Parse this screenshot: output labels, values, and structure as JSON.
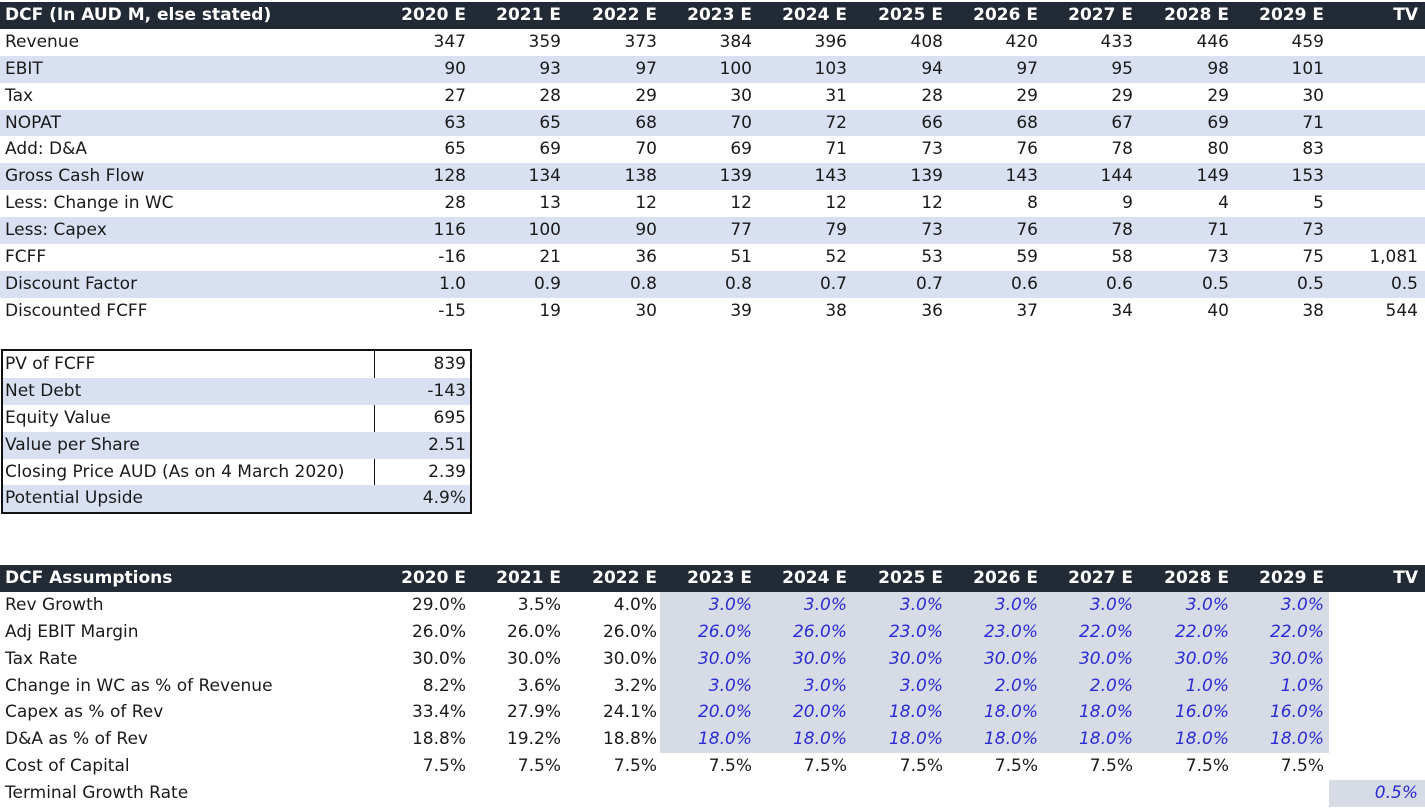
{
  "dcf": {
    "title": "DCF (In AUD M, else stated)",
    "columns": [
      "2020 E",
      "2021 E",
      "2022 E",
      "2023 E",
      "2024 E",
      "2025 E",
      "2026 E",
      "2027 E",
      "2028 E",
      "2029 E",
      "TV"
    ],
    "rows": [
      {
        "label": "Revenue",
        "values": [
          "347",
          "359",
          "373",
          "384",
          "396",
          "408",
          "420",
          "433",
          "446",
          "459",
          ""
        ]
      },
      {
        "label": "EBIT",
        "values": [
          "90",
          "93",
          "97",
          "100",
          "103",
          "94",
          "97",
          "95",
          "98",
          "101",
          ""
        ]
      },
      {
        "label": "Tax",
        "values": [
          "27",
          "28",
          "29",
          "30",
          "31",
          "28",
          "29",
          "29",
          "29",
          "30",
          ""
        ]
      },
      {
        "label": "NOPAT",
        "values": [
          "63",
          "65",
          "68",
          "70",
          "72",
          "66",
          "68",
          "67",
          "69",
          "71",
          ""
        ]
      },
      {
        "label": "Add: D&A",
        "values": [
          "65",
          "69",
          "70",
          "69",
          "71",
          "73",
          "76",
          "78",
          "80",
          "83",
          ""
        ]
      },
      {
        "label": "Gross Cash Flow",
        "values": [
          "128",
          "134",
          "138",
          "139",
          "143",
          "139",
          "143",
          "144",
          "149",
          "153",
          ""
        ]
      },
      {
        "label": "Less: Change in WC",
        "values": [
          "28",
          "13",
          "12",
          "12",
          "12",
          "12",
          "8",
          "9",
          "4",
          "5",
          ""
        ]
      },
      {
        "label": "Less: Capex",
        "values": [
          "116",
          "100",
          "90",
          "77",
          "79",
          "73",
          "76",
          "78",
          "71",
          "73",
          ""
        ]
      },
      {
        "label": "FCFF",
        "values": [
          "-16",
          "21",
          "36",
          "51",
          "52",
          "53",
          "59",
          "58",
          "73",
          "75",
          "1,081"
        ]
      },
      {
        "label": "Discount Factor",
        "values": [
          "1.0",
          "0.9",
          "0.8",
          "0.8",
          "0.7",
          "0.7",
          "0.6",
          "0.6",
          "0.5",
          "0.5",
          "0.5"
        ]
      },
      {
        "label": "Discounted FCFF",
        "values": [
          "-15",
          "19",
          "30",
          "39",
          "38",
          "36",
          "37",
          "34",
          "40",
          "38",
          "544"
        ]
      }
    ]
  },
  "summary": [
    {
      "label": "PV of FCFF",
      "value": "839"
    },
    {
      "label": "Net Debt",
      "value": "-143"
    },
    {
      "label": "Equity Value",
      "value": "695"
    },
    {
      "label": "Value per Share",
      "value": "2.51"
    },
    {
      "label": "Closing Price AUD (As on 4 March 2020)",
      "value": "2.39"
    },
    {
      "label": "Potential Upside",
      "value": "4.9%"
    }
  ],
  "assumptions": {
    "title": "DCF Assumptions",
    "columns": [
      "2020 E",
      "2021 E",
      "2022 E",
      "2023 E",
      "2024 E",
      "2025 E",
      "2026 E",
      "2027 E",
      "2028 E",
      "2029 E",
      "TV"
    ],
    "rows": [
      {
        "label": "Rev Growth",
        "values": [
          "29.0%",
          "3.5%",
          "4.0%",
          "3.0%",
          "3.0%",
          "3.0%",
          "3.0%",
          "3.0%",
          "3.0%",
          "3.0%",
          ""
        ]
      },
      {
        "label": "Adj EBIT Margin",
        "values": [
          "26.0%",
          "26.0%",
          "26.0%",
          "26.0%",
          "26.0%",
          "23.0%",
          "23.0%",
          "22.0%",
          "22.0%",
          "22.0%",
          ""
        ]
      },
      {
        "label": "Tax Rate",
        "values": [
          "30.0%",
          "30.0%",
          "30.0%",
          "30.0%",
          "30.0%",
          "30.0%",
          "30.0%",
          "30.0%",
          "30.0%",
          "30.0%",
          ""
        ]
      },
      {
        "label": "Change in WC as % of Revenue",
        "values": [
          "8.2%",
          "3.6%",
          "3.2%",
          "3.0%",
          "3.0%",
          "3.0%",
          "2.0%",
          "2.0%",
          "1.0%",
          "1.0%",
          ""
        ]
      },
      {
        "label": "Capex as % of Rev",
        "values": [
          "33.4%",
          "27.9%",
          "24.1%",
          "20.0%",
          "20.0%",
          "18.0%",
          "18.0%",
          "18.0%",
          "16.0%",
          "16.0%",
          ""
        ]
      },
      {
        "label": "D&A as % of Rev",
        "values": [
          "18.8%",
          "19.2%",
          "18.8%",
          "18.0%",
          "18.0%",
          "18.0%",
          "18.0%",
          "18.0%",
          "18.0%",
          "18.0%",
          ""
        ]
      },
      {
        "label": "Cost of Capital",
        "values": [
          "7.5%",
          "7.5%",
          "7.5%",
          "7.5%",
          "7.5%",
          "7.5%",
          "7.5%",
          "7.5%",
          "7.5%",
          "7.5%",
          ""
        ]
      },
      {
        "label": "Terminal Growth Rate",
        "values": [
          "",
          "",
          "",
          "",
          "",
          "",
          "",
          "",
          "",
          "",
          "0.5%"
        ]
      }
    ]
  },
  "colors": {
    "header_bg": "#222a35",
    "band": "#d9e0f1",
    "input_text": "#2b2bd6",
    "input_block": "#d6dbe6"
  }
}
